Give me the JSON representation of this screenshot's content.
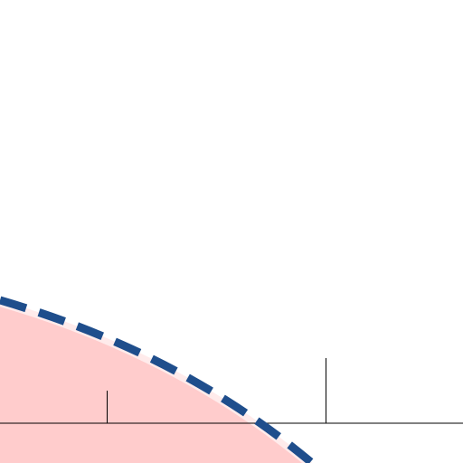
{
  "diagram": {
    "background_color": "#ffffff",
    "region_fill_color": "#ffcccc",
    "boundary_stroke_color": "#1f4e8c",
    "boundary_style": "dashed",
    "baseline_color": "#000000",
    "tick_color": "#000000",
    "tick_count": 2
  }
}
